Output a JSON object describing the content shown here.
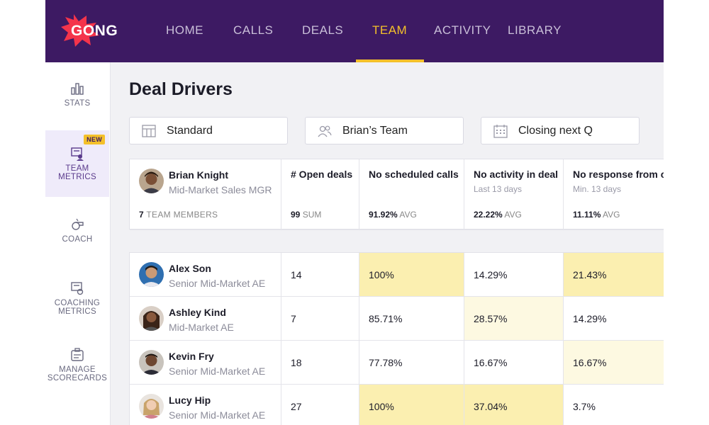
{
  "brand": {
    "name": "GONG",
    "burst_color": "#f4344b",
    "nav_bg": "#3d1a63",
    "accent": "#f4c02a"
  },
  "nav": [
    {
      "label": "HOME",
      "active": false
    },
    {
      "label": "CALLS",
      "active": false
    },
    {
      "label": "DEALS",
      "active": false
    },
    {
      "label": "TEAM",
      "active": true
    },
    {
      "label": "ACTIVITY",
      "active": false
    },
    {
      "label": "LIBRARY",
      "active": false
    }
  ],
  "sidebar": [
    {
      "icon": "bar-chart-icon",
      "label": "STATS"
    },
    {
      "icon": "team-metrics-icon",
      "label": "TEAM\nMETRICS",
      "badge": "NEW",
      "active": true
    },
    {
      "icon": "whistle-icon",
      "label": "COACH"
    },
    {
      "icon": "coaching-metrics-icon",
      "label": "COACHING\nMETRICS"
    },
    {
      "icon": "scorecard-icon",
      "label": "MANAGE\nSCORECARDS"
    }
  ],
  "page": {
    "title": "Deal Drivers"
  },
  "filters": [
    {
      "icon": "table-icon",
      "label": "Standard"
    },
    {
      "icon": "people-icon",
      "label": "Brian’s Team"
    },
    {
      "icon": "calendar-icon",
      "label": "Closing next Q"
    }
  ],
  "summary": {
    "manager": {
      "name": "Brian Knight",
      "role": "Mid-Market Sales MGR"
    },
    "members_count": "7",
    "members_label": "TEAM MEMBERS",
    "columns": [
      {
        "title": "# Open deals",
        "sub": "",
        "stat": "99",
        "stat_label": "SUM"
      },
      {
        "title": "No scheduled calls",
        "sub": "",
        "stat": "91.92%",
        "stat_label": "AVG"
      },
      {
        "title": "No activity in deal",
        "sub": "Last 13 days",
        "stat": "22.22%",
        "stat_label": "AVG"
      },
      {
        "title": "No response from co",
        "sub": "Min. 13 days",
        "stat": "11.11%",
        "stat_label": "AVG"
      }
    ]
  },
  "rows": [
    {
      "name": "Alex Son",
      "role": "Senior Mid-Market AE",
      "open": "14",
      "no_calls": "100%",
      "no_activity": "14.29%",
      "no_response": "21.43%"
    },
    {
      "name": "Ashley Kind",
      "role": "Mid-Market AE",
      "open": "7",
      "no_calls": "85.71%",
      "no_activity": "28.57%",
      "no_response": "14.29%"
    },
    {
      "name": "Kevin Fry",
      "role": "Senior Mid-Market AE",
      "open": "18",
      "no_calls": "77.78%",
      "no_activity": "16.67%",
      "no_response": "16.67%"
    },
    {
      "name": "Lucy Hip",
      "role": "Senior Mid-Market AE",
      "open": "27",
      "no_calls": "100%",
      "no_activity": "37.04%",
      "no_response": "3.7%"
    }
  ]
}
